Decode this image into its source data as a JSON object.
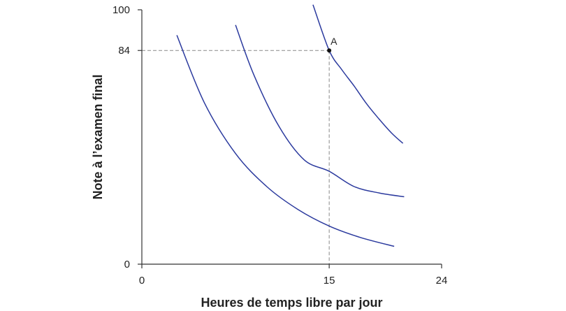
{
  "chart_data": {
    "type": "line",
    "title": "",
    "xlabel": "Heures de temps libre par jour",
    "ylabel": "Note à l’examen final",
    "xlim": [
      0,
      24
    ],
    "ylim": [
      0,
      100
    ],
    "xticks": [
      {
        "value": 0,
        "label": "0"
      },
      {
        "value": 15,
        "label": "15"
      },
      {
        "value": 24,
        "label": "24"
      }
    ],
    "yticks": [
      {
        "value": 0,
        "label": "0"
      },
      {
        "value": 84,
        "label": "84"
      },
      {
        "value": 100,
        "label": "100"
      }
    ],
    "grid": false,
    "colors": {
      "curve": "#2b3a9e",
      "axis": "#333333",
      "guide": "#888888",
      "point": "#111111"
    },
    "series": [
      {
        "x": [
          2.8,
          5.0,
          7.5,
          10.0,
          12.5,
          15.0,
          17.5,
          20.2
        ],
        "y": [
          90,
          63.5,
          43.5,
          30.5,
          21.5,
          15,
          10.5,
          7
        ]
      },
      {
        "x": [
          7.5,
          9.0,
          11.0,
          13.0,
          15.0,
          17.0,
          19.0,
          21.0
        ],
        "y": [
          94,
          74,
          54,
          41,
          36.5,
          30.5,
          28,
          26.5
        ]
      },
      {
        "x": [
          13.7,
          15.0,
          16.0,
          17.0,
          18.0,
          19.0,
          20.0,
          20.9
        ],
        "y": [
          102,
          84,
          76.5,
          70,
          63,
          57,
          51.5,
          47.5
        ]
      }
    ],
    "points": [
      {
        "label": "A",
        "x": 15,
        "y": 84
      }
    ]
  }
}
